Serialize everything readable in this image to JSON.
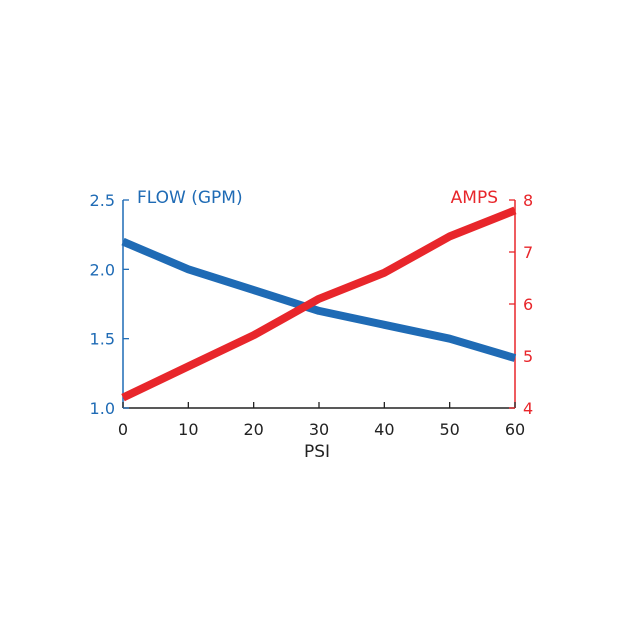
{
  "chart_data": {
    "type": "line",
    "xlabel": "PSI",
    "x_ticks": [
      0,
      10,
      20,
      30,
      40,
      50,
      60
    ],
    "xlim": [
      0,
      60
    ],
    "grid": false,
    "left_axis": {
      "label": "FLOW (GPM)",
      "ticks": [
        "1.0",
        "1.5",
        "2.0",
        "2.5"
      ],
      "ylim": [
        1.0,
        2.5
      ],
      "color": "#1f6bb5"
    },
    "right_axis": {
      "label": "AMPS",
      "ticks": [
        "4",
        "5",
        "6",
        "7",
        "8"
      ],
      "ylim": [
        4,
        8
      ],
      "color": "#e8262b"
    },
    "series": [
      {
        "name": "FLOW (GPM)",
        "axis": "left",
        "color": "#1f6bb5",
        "x": [
          0,
          5,
          10,
          20,
          30,
          40,
          50,
          60
        ],
        "y": [
          2.2,
          2.1,
          2.0,
          1.85,
          1.7,
          1.6,
          1.5,
          1.36
        ]
      },
      {
        "name": "AMPS",
        "axis": "right",
        "color": "#e8262b",
        "x": [
          0,
          10,
          20,
          30,
          40,
          50,
          60
        ],
        "y": [
          4.2,
          4.8,
          5.4,
          6.1,
          6.6,
          7.3,
          7.8
        ]
      }
    ]
  }
}
